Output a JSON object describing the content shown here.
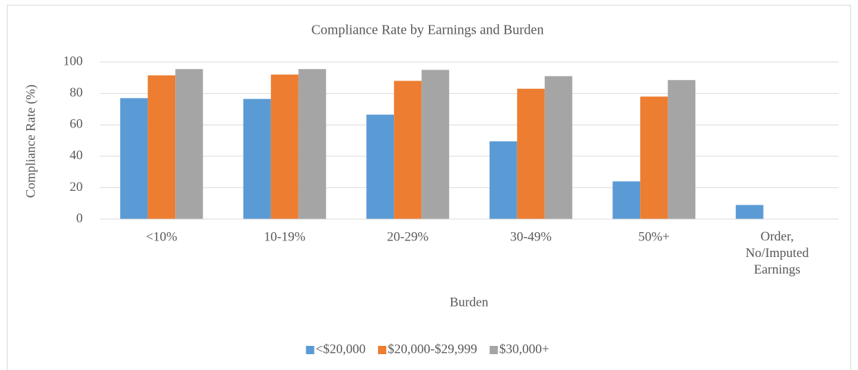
{
  "chart_data": {
    "type": "bar",
    "title": "Compliance Rate by Earnings and Burden",
    "x_label": "Burden",
    "y_label": "Compliance Rate (%)",
    "categories": [
      "<10%",
      "10-19%",
      "20-29%",
      "30-49%",
      "50%+",
      "Order, No/Imputed Earnings"
    ],
    "series": [
      {
        "name": "<$20,000",
        "color": "#5b9bd5",
        "values": [
          77,
          76.5,
          66.5,
          49.5,
          24,
          9
        ]
      },
      {
        "name": "$20,000-$29,999",
        "color": "#ed7d31",
        "values": [
          91.5,
          92,
          88,
          83,
          78,
          null
        ]
      },
      {
        "name": "$30,000+",
        "color": "#a5a5a5",
        "values": [
          95.5,
          95.5,
          95,
          91,
          88.5,
          null
        ]
      }
    ],
    "ylim": [
      0,
      100
    ],
    "yticks": [
      0,
      20,
      40,
      60,
      80,
      100
    ],
    "grid": true,
    "legend": "bottom"
  }
}
